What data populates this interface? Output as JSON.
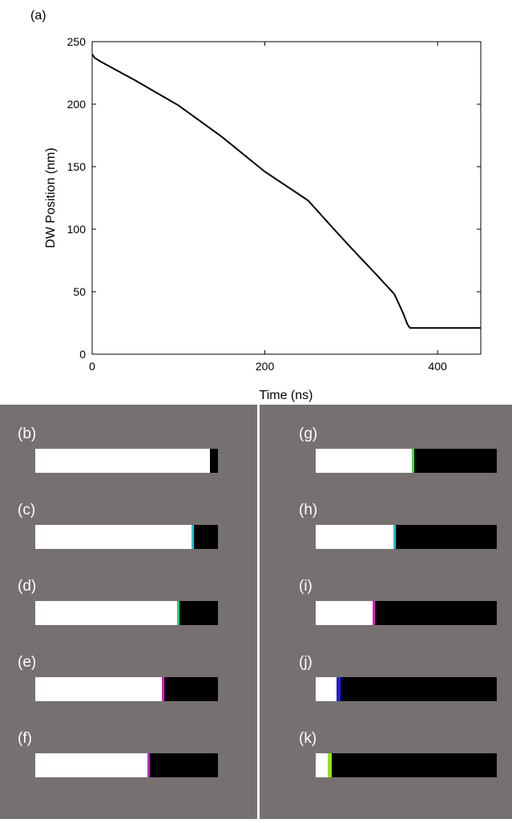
{
  "chart_data": {
    "type": "line",
    "panel_label": "(a)",
    "x_label": "Time (ns)",
    "y_label": "DW Position (nm)",
    "x": [
      0,
      3,
      10,
      50,
      100,
      150,
      200,
      250,
      280,
      300,
      330,
      350,
      360,
      365,
      368,
      375,
      450
    ],
    "values": [
      240,
      237,
      234,
      219,
      199,
      174,
      146,
      123,
      100,
      85,
      63,
      48,
      33,
      24,
      21,
      21,
      21
    ],
    "color": "#000000",
    "xlim": [
      0,
      450
    ],
    "ylim": [
      0,
      250
    ],
    "xticks": [
      0,
      200,
      400
    ],
    "yticks": [
      0,
      50,
      100,
      150,
      200,
      250
    ],
    "grid": false
  },
  "panels": {
    "labels": [
      "(b)",
      "(c)",
      "(d)",
      "(e)",
      "(f)",
      "(g)",
      "(h)",
      "(i)",
      "(j)",
      "(k)"
    ]
  }
}
